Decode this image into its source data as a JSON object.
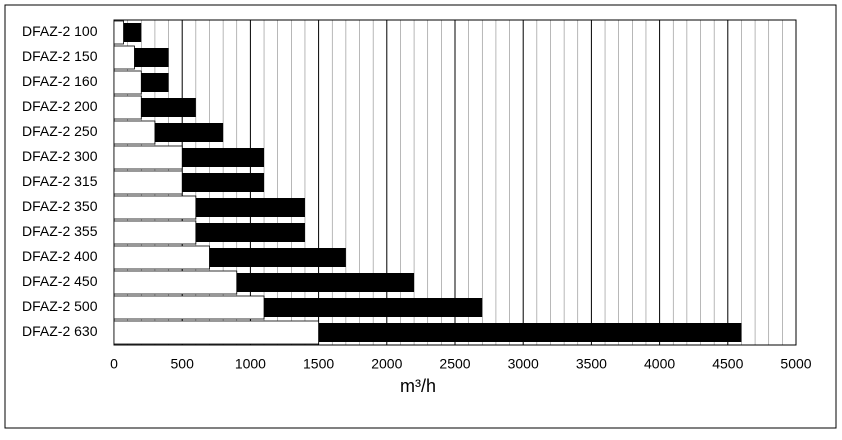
{
  "chart_data": {
    "type": "range_bar",
    "x_label": "m³/h",
    "categories": [
      "DFAZ-2 100",
      "DFAZ-2 150",
      "DFAZ-2 160",
      "DFAZ-2 200",
      "DFAZ-2 250",
      "DFAZ-2 300",
      "DFAZ-2 315",
      "DFAZ-2 350",
      "DFAZ-2 355",
      "DFAZ-2 400",
      "DFAZ-2 450",
      "DFAZ-2 500",
      "DFAZ-2 630"
    ],
    "starts": [
      70,
      150,
      200,
      200,
      300,
      500,
      500,
      600,
      600,
      700,
      900,
      1100,
      1500
    ],
    "ends": [
      200,
      400,
      400,
      600,
      800,
      1100,
      1100,
      1400,
      1400,
      1700,
      2200,
      2700,
      4600
    ],
    "color": "#000000",
    "xlim": [
      0,
      5000
    ],
    "xticks": [
      0,
      500,
      1000,
      1500,
      2000,
      2500,
      3000,
      3500,
      4000,
      4500,
      5000
    ],
    "grid": true,
    "minor_divisions": 5
  }
}
